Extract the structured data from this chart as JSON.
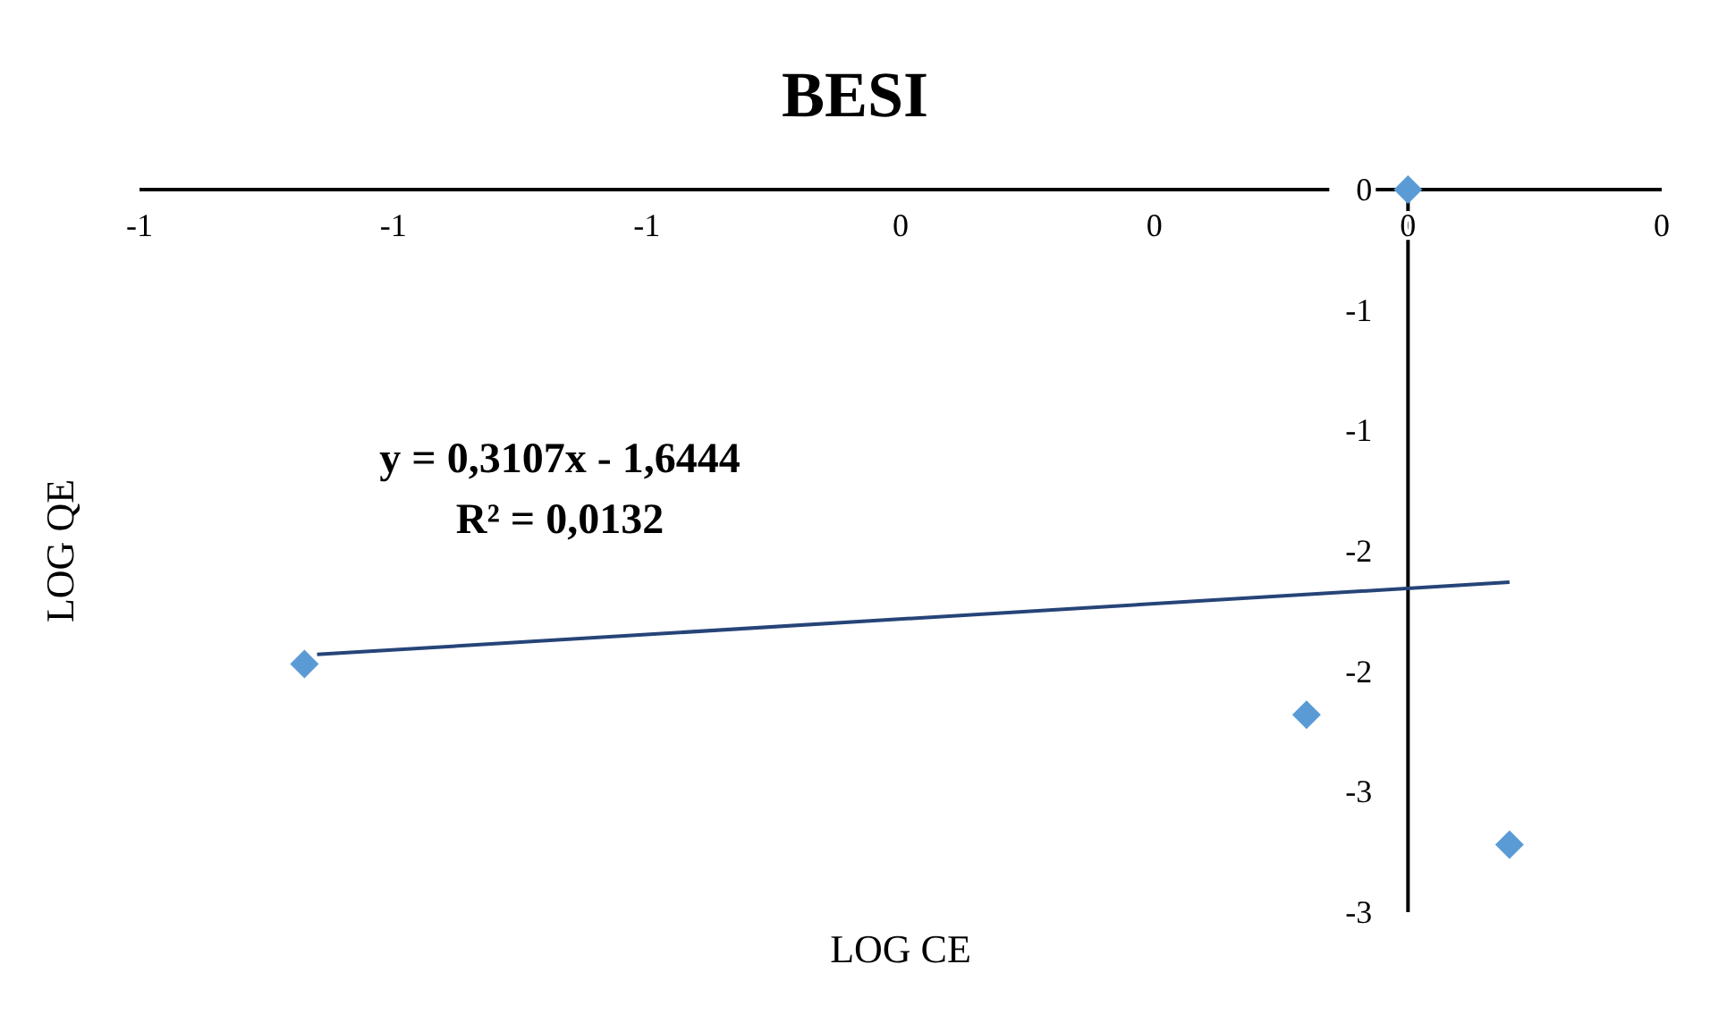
{
  "chart_data": {
    "type": "scatter",
    "title": "BESI",
    "xlabel": "LOG CE",
    "ylabel": "LOG QE",
    "xlim": [
      -1,
      0.2
    ],
    "xticks": [
      {
        "value": -1,
        "label": "-1"
      },
      {
        "value": -0.8,
        "label": "-1"
      },
      {
        "value": -0.6,
        "label": "-1"
      },
      {
        "value": -0.4,
        "label": "0"
      },
      {
        "value": -0.2,
        "label": "0"
      },
      {
        "value": 0,
        "label": "0"
      },
      {
        "value": 0.2,
        "label": "0"
      }
    ],
    "ylim": [
      -3,
      0
    ],
    "yticks": [
      {
        "value": 0,
        "label": "0"
      },
      {
        "value": -0.5,
        "label": "-1"
      },
      {
        "value": -1,
        "label": "-1"
      },
      {
        "value": -1.5,
        "label": "-2"
      },
      {
        "value": -2,
        "label": "-2"
      },
      {
        "value": -2.5,
        "label": "-3"
      },
      {
        "value": -3,
        "label": "-3"
      }
    ],
    "series": [
      {
        "type": "scatter",
        "color": "#5b9bd5",
        "marker": "diamond",
        "x": [
          0,
          -0.87,
          -0.08,
          0.08
        ],
        "values": [
          0,
          -1.97,
          -2.18,
          -2.72
        ]
      },
      {
        "type": "line",
        "color": "#264478",
        "marker": "none",
        "line_style": "solid",
        "x": [
          -0.86,
          0.08
        ],
        "values": [
          -1.93,
          -1.63
        ]
      }
    ],
    "annotations": [
      "y = 0,3107x - 1,6444",
      "R² = 0,0132"
    ],
    "grid": false
  }
}
